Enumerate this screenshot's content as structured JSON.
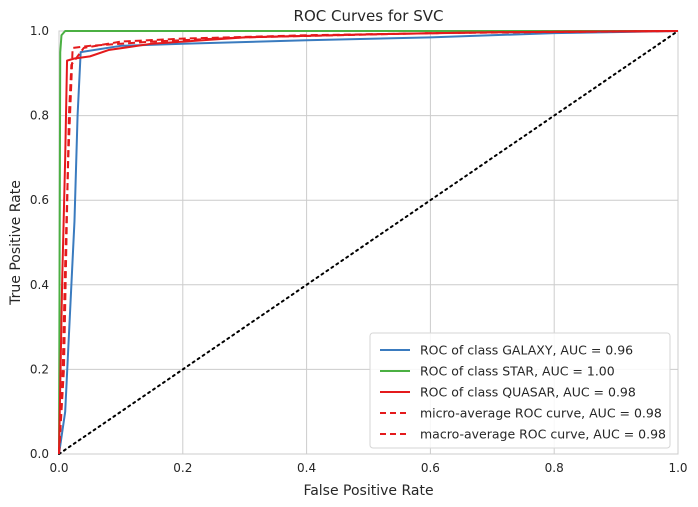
{
  "chart_data": {
    "type": "line",
    "title": "ROC Curves for SVC",
    "xlabel": "False Positive Rate",
    "ylabel": "True Positive Rate",
    "xlim": [
      0,
      1
    ],
    "ylim": [
      0,
      1
    ],
    "grid": true,
    "legend_position": "bottom-right",
    "x_ticks": [
      "0.0",
      "0.2",
      "0.4",
      "0.6",
      "0.8",
      "1.0"
    ],
    "y_ticks": [
      "0.0",
      "0.2",
      "0.4",
      "0.6",
      "0.8",
      "1.0"
    ],
    "series": [
      {
        "name": "ROC of class GALAXY, AUC = 0.96",
        "color": "#3a7bbf",
        "style": "solid",
        "points": [
          [
            0,
            0
          ],
          [
            0.01,
            0.1
          ],
          [
            0.015,
            0.25
          ],
          [
            0.02,
            0.4
          ],
          [
            0.025,
            0.55
          ],
          [
            0.03,
            0.8
          ],
          [
            0.035,
            0.95
          ],
          [
            0.1,
            0.965
          ],
          [
            0.2,
            0.97
          ],
          [
            0.4,
            0.978
          ],
          [
            0.6,
            0.985
          ],
          [
            0.8,
            0.995
          ],
          [
            1,
            1
          ]
        ]
      },
      {
        "name": "ROC of class STAR, AUC = 1.00",
        "color": "#4bb043",
        "style": "solid",
        "points": [
          [
            0,
            0
          ],
          [
            0.002,
            0.95
          ],
          [
            0.004,
            0.99
          ],
          [
            0.01,
            1
          ],
          [
            1,
            1
          ]
        ]
      },
      {
        "name": "ROC of class QUASAR, AUC = 0.98",
        "color": "#e41a1c",
        "style": "solid",
        "points": [
          [
            0,
            0
          ],
          [
            0.005,
            0.4
          ],
          [
            0.01,
            0.7
          ],
          [
            0.013,
            0.93
          ],
          [
            0.025,
            0.935
          ],
          [
            0.05,
            0.94
          ],
          [
            0.08,
            0.955
          ],
          [
            0.15,
            0.97
          ],
          [
            0.3,
            0.985
          ],
          [
            0.5,
            0.992
          ],
          [
            0.7,
            0.997
          ],
          [
            1,
            1
          ]
        ]
      },
      {
        "name": "micro-average ROC curve, AUC = 0.98",
        "color": "#e41a1c",
        "style": "dashed",
        "points": [
          [
            0,
            0
          ],
          [
            0.006,
            0.2
          ],
          [
            0.01,
            0.45
          ],
          [
            0.015,
            0.7
          ],
          [
            0.02,
            0.88
          ],
          [
            0.022,
            0.96
          ],
          [
            0.05,
            0.965
          ],
          [
            0.15,
            0.975
          ],
          [
            0.3,
            0.985
          ],
          [
            0.6,
            0.995
          ],
          [
            1,
            1
          ]
        ]
      },
      {
        "name": "macro-average ROC curve, AUC = 0.98",
        "color": "#e41a1c",
        "style": "dashed",
        "points": [
          [
            0,
            0
          ],
          [
            0.008,
            0.2
          ],
          [
            0.012,
            0.5
          ],
          [
            0.016,
            0.8
          ],
          [
            0.02,
            0.92
          ],
          [
            0.04,
            0.96
          ],
          [
            0.1,
            0.975
          ],
          [
            0.2,
            0.982
          ],
          [
            0.4,
            0.99
          ],
          [
            0.7,
            0.997
          ],
          [
            1,
            1
          ]
        ]
      },
      {
        "name": "chance",
        "color": "#000000",
        "style": "dotted",
        "legend": false,
        "points": [
          [
            0,
            0
          ],
          [
            1,
            1
          ]
        ]
      }
    ]
  }
}
